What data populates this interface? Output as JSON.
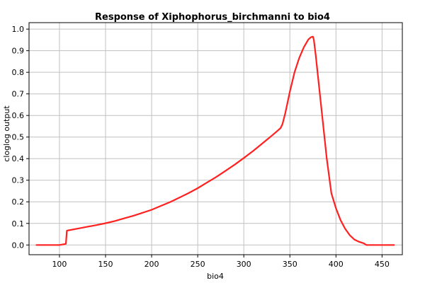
{
  "chart_data": {
    "type": "line",
    "title": "Response of Xiphophorus_birchmanni to bio4",
    "xlabel": "bio4",
    "ylabel": "cloglog output",
    "xlim": [
      67,
      472
    ],
    "ylim": [
      -0.045,
      1.03
    ],
    "xticks": [
      100,
      150,
      200,
      250,
      300,
      350,
      400,
      450
    ],
    "yticks": [
      0.0,
      0.1,
      0.2,
      0.3,
      0.4,
      0.5,
      0.6,
      0.7,
      0.8,
      0.9,
      1.0
    ],
    "xtick_labels": [
      "100",
      "150",
      "200",
      "250",
      "300",
      "350",
      "400",
      "450"
    ],
    "ytick_labels": [
      "0.0",
      "0.1",
      "0.2",
      "0.3",
      "0.4",
      "0.5",
      "0.6",
      "0.7",
      "0.8",
      "0.9",
      "1.0"
    ],
    "grid": true,
    "legend": "none",
    "series": [
      {
        "color": "#ff2020",
        "x": [
          75,
          100,
          107,
          108,
          110,
          120,
          130,
          140,
          150,
          160,
          170,
          180,
          190,
          200,
          210,
          220,
          230,
          240,
          250,
          260,
          270,
          280,
          290,
          300,
          310,
          320,
          330,
          335,
          340,
          342,
          345,
          350,
          355,
          360,
          365,
          370,
          373,
          375,
          376,
          378,
          380,
          385,
          390,
          395,
          400,
          405,
          410,
          415,
          420,
          425,
          430,
          433,
          440,
          450,
          463
        ],
        "y": [
          0.0,
          0.0,
          0.005,
          0.066,
          0.068,
          0.076,
          0.084,
          0.092,
          0.101,
          0.111,
          0.123,
          0.135,
          0.149,
          0.163,
          0.181,
          0.199,
          0.219,
          0.24,
          0.263,
          0.289,
          0.315,
          0.343,
          0.372,
          0.403,
          0.435,
          0.47,
          0.505,
          0.523,
          0.542,
          0.56,
          0.61,
          0.71,
          0.8,
          0.865,
          0.915,
          0.952,
          0.963,
          0.965,
          0.95,
          0.88,
          0.8,
          0.6,
          0.4,
          0.24,
          0.17,
          0.115,
          0.075,
          0.045,
          0.025,
          0.015,
          0.008,
          0.0,
          0.0,
          0.0,
          0.0
        ]
      }
    ]
  }
}
